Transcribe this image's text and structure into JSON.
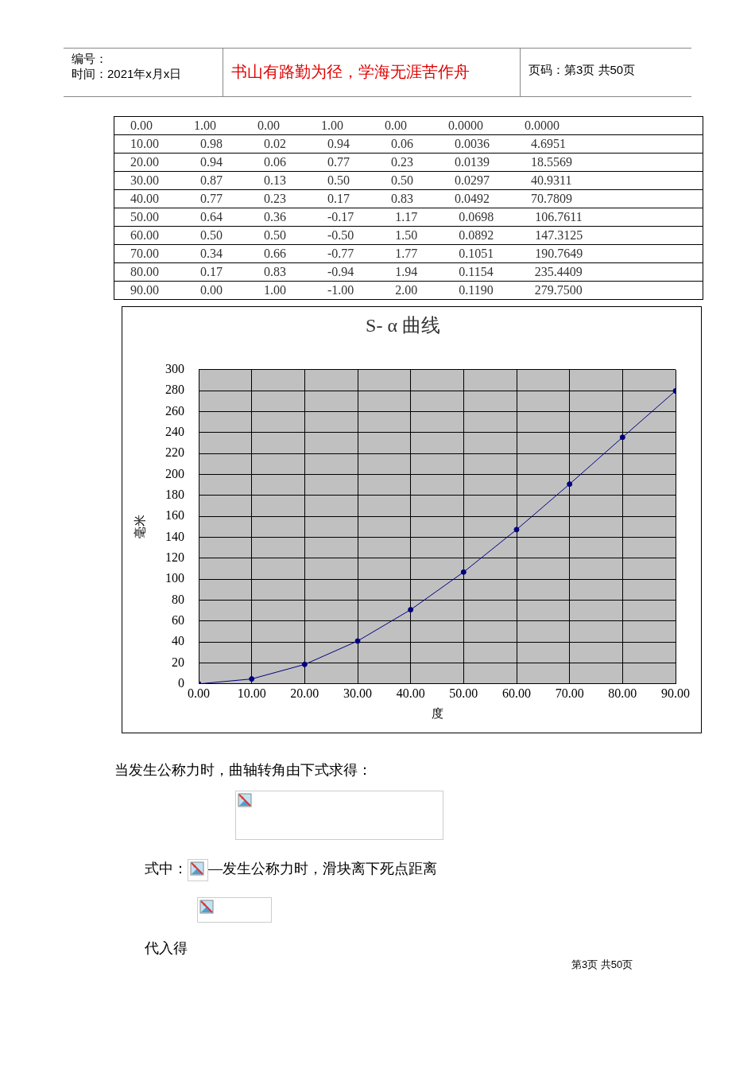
{
  "chart_data": [
    {
      "type": "other",
      "annotations": [
        "编号：",
        "时间：2021年x月x日",
        "书山有路勤为径，学海无涯苦作舟",
        "页码：第3页 共50页"
      ]
    },
    {
      "type": "other",
      "annotations": [
        "0.00 1.00 0.00 1.00 0.00 0.0000 0.0000",
        "10.00 0.98 0.02 0.94 0.06 0.0036 4.6951",
        "20.00 0.94 0.06 0.77 0.23 0.0139 18.5569",
        "30.00 0.87 0.13 0.50 0.50 0.0297 40.9311",
        "40.00 0.77 0.23 0.17 0.83 0.0492 70.7809",
        "50.00 0.64 0.36 -0.17 1.17 0.0698 106.7611",
        "60.00 0.50 0.50 -0.50 1.50 0.0892 147.3125",
        "70.00 0.34 0.66 -0.77 1.77 0.1051 190.7649",
        "80.00 0.17 0.83 -0.94 1.94 0.1154 235.4409",
        "90.00 0.00 1.00 -1.00 2.00 0.1190 279.7500"
      ]
    },
    {
      "type": "line",
      "title": "S- α 曲线",
      "xlabel": "度",
      "ylabel": "毫米",
      "x": [
        0,
        10,
        20,
        30,
        40,
        50,
        60,
        70,
        80,
        90
      ],
      "series": [
        {
          "color": "#000080",
          "values": [
            0,
            4.6951,
            18.5569,
            40.9311,
            70.7809,
            106.7611,
            147.3125,
            190.7649,
            235.4409,
            279.75
          ]
        }
      ],
      "xlim": [
        0,
        90
      ],
      "xticks": [
        {
          "value": 0,
          "label": "0.00"
        },
        {
          "value": 10,
          "label": "10.00"
        },
        {
          "value": 20,
          "label": "20.00"
        },
        {
          "value": 30,
          "label": "30.00"
        },
        {
          "value": 40,
          "label": "40.00"
        },
        {
          "value": 50,
          "label": "50.00"
        },
        {
          "value": 60,
          "label": "60.00"
        },
        {
          "value": 70,
          "label": "70.00"
        },
        {
          "value": 80,
          "label": "80.00"
        },
        {
          "value": 90,
          "label": "90.00"
        }
      ],
      "ylim": [
        0,
        300
      ],
      "yticks": [
        0,
        20,
        40,
        60,
        80,
        100,
        120,
        140,
        160,
        180,
        200,
        220,
        240,
        260,
        280,
        300
      ],
      "grid": true,
      "marker": "circle",
      "line_style": "solid",
      "legend": false
    },
    {
      "type": "other",
      "annotations": [
        "当发生公称力时，曲轴转角由下式求得：",
        "式中：",
        "—发生公称力时，滑块离下死点距离",
        "代入得",
        "第3页 共50页"
      ]
    }
  ]
}
